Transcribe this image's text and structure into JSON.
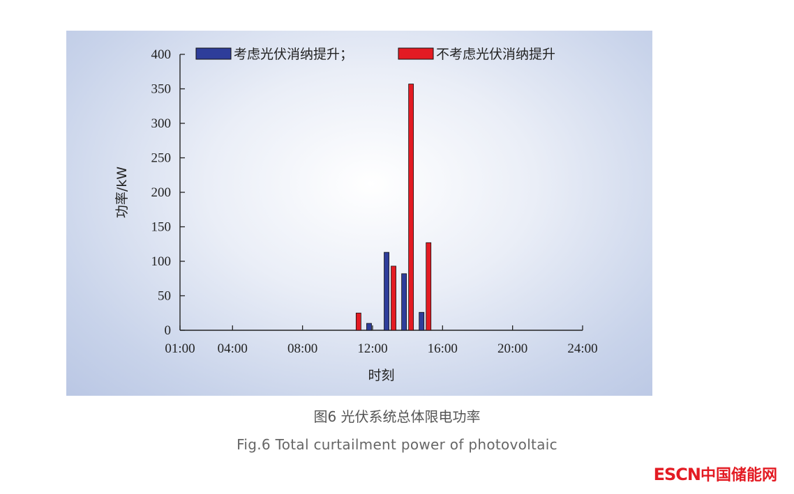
{
  "chart_data": {
    "type": "bar",
    "xlabel": "时刻",
    "ylabel": "功率/kW",
    "ylim": [
      0,
      400
    ],
    "yticks": [
      0,
      50,
      100,
      150,
      200,
      250,
      300,
      350,
      400
    ],
    "xlim": [
      1,
      24
    ],
    "xtick_labels": [
      "01:00",
      "04:00",
      "08:00",
      "12:00",
      "16:00",
      "20:00",
      "24:00"
    ],
    "xtick_hours": [
      1,
      4,
      8,
      12,
      16,
      20,
      24
    ],
    "legend_position": "top",
    "series": [
      {
        "name": "考虑光伏消纳提升；",
        "color": "#2e3d9a",
        "hours": [
          12,
          13,
          14,
          15
        ],
        "values": [
          10,
          113,
          82,
          26
        ]
      },
      {
        "name": "不考虑光伏消纳提升",
        "color": "#e31b23",
        "hours": [
          11,
          13,
          14,
          15
        ],
        "values": [
          25,
          93,
          357,
          127
        ]
      }
    ]
  },
  "caption": {
    "cn": "图6  光伏系统总体限电功率",
    "en": "Fig.6  Total curtailment power of photovoltaic"
  },
  "brand": {
    "latin": "ESCN",
    "cn": "中国储能网",
    "color": "#e31b23"
  }
}
